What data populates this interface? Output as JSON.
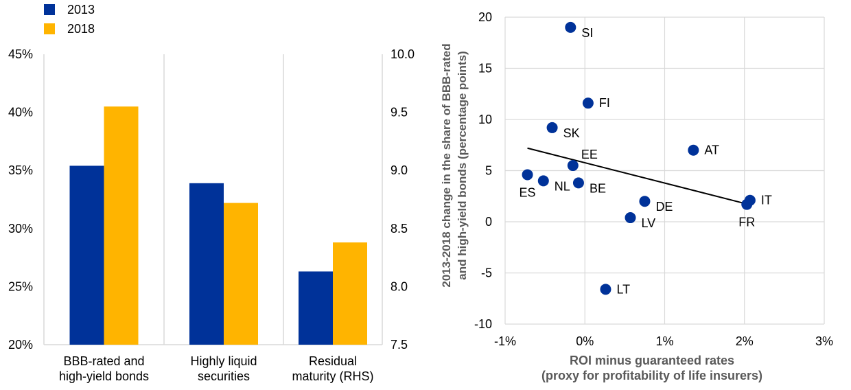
{
  "chart_data": [
    {
      "type": "bar",
      "title": "",
      "categories": [
        "BBB-rated and\nhigh-yield bonds",
        "Highly liquid\nsecurities",
        "Residual\nmaturity (RHS)"
      ],
      "series": [
        {
          "name": "2013",
          "color": "#003299",
          "values": [
            35.4,
            33.9,
            8.13
          ]
        },
        {
          "name": "2018",
          "color": "#ffb400",
          "values": [
            40.5,
            32.2,
            8.38
          ]
        }
      ],
      "value_axis": [
        "left",
        "left",
        "right"
      ],
      "ylim_left": [
        20,
        45
      ],
      "yticks_left": [
        20,
        25,
        30,
        35,
        40,
        45
      ],
      "ytick_labels_left": [
        "20%",
        "25%",
        "30%",
        "35%",
        "40%",
        "45%"
      ],
      "ylim_right": [
        7.5,
        10.0
      ],
      "yticks_right": [
        7.5,
        8.0,
        8.5,
        9.0,
        9.5,
        10.0
      ],
      "ytick_labels_right": [
        "7.5",
        "8.0",
        "8.5",
        "9.0",
        "9.5",
        "10.0"
      ],
      "legend_position": "top-left",
      "grid": "vertical separators between categories"
    },
    {
      "type": "scatter",
      "title": "",
      "xlabel": "ROI minus guaranteed rates\n(proxy for profitability of life insurers)",
      "ylabel": "2013-2018 change in the share of BBB-rated\nand high-yield bonds (percentage points)",
      "xlim": [
        -1,
        3
      ],
      "ylim": [
        -10,
        20
      ],
      "xticks": [
        -1,
        0,
        1,
        2,
        3
      ],
      "xtick_labels": [
        "-1%",
        "0%",
        "1%",
        "2%",
        "3%"
      ],
      "yticks": [
        -10,
        -5,
        0,
        5,
        10,
        15,
        20
      ],
      "ytick_labels": [
        "-10",
        "-5",
        "0",
        "5",
        "10",
        "15",
        "20"
      ],
      "grid": "horizontal and vertical gridlines",
      "point_color": "#003299",
      "points": [
        {
          "label": "SI",
          "x": -0.18,
          "y": 19.0,
          "label_pos": "right-below"
        },
        {
          "label": "FI",
          "x": 0.04,
          "y": 11.6,
          "label_pos": "right"
        },
        {
          "label": "SK",
          "x": -0.41,
          "y": 9.2,
          "label_pos": "right-below"
        },
        {
          "label": "AT",
          "x": 1.36,
          "y": 7.0,
          "label_pos": "right"
        },
        {
          "label": "EE",
          "x": -0.15,
          "y": 5.5,
          "label_pos": "right-above"
        },
        {
          "label": "ES",
          "x": -0.72,
          "y": 4.6,
          "label_pos": "below"
        },
        {
          "label": "NL",
          "x": -0.52,
          "y": 4.0,
          "label_pos": "right-below"
        },
        {
          "label": "BE",
          "x": -0.08,
          "y": 3.8,
          "label_pos": "right-below"
        },
        {
          "label": "IT",
          "x": 2.07,
          "y": 2.1,
          "label_pos": "right"
        },
        {
          "label": "DE",
          "x": 0.75,
          "y": 2.0,
          "label_pos": "right-below"
        },
        {
          "label": "FR",
          "x": 2.03,
          "y": 1.7,
          "label_pos": "below"
        },
        {
          "label": "LV",
          "x": 0.57,
          "y": 0.4,
          "label_pos": "right-below"
        },
        {
          "label": "LT",
          "x": 0.26,
          "y": -6.6,
          "label_pos": "right"
        }
      ],
      "trend_line": {
        "x": [
          -0.72,
          2.05
        ],
        "y": [
          7.2,
          1.7
        ]
      }
    }
  ]
}
